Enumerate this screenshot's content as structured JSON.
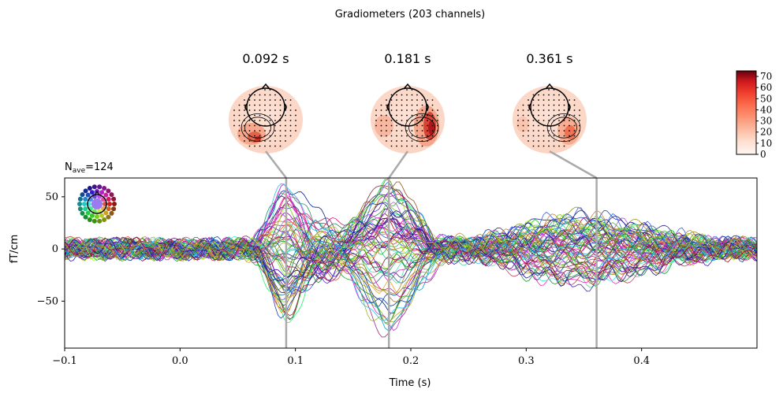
{
  "chart_data": {
    "type": "line",
    "title": "Gradiometers (203 channels)",
    "nave_label": "N",
    "nave_sub": "ave",
    "nave_value": "=124",
    "xlabel": "Time (s)",
    "ylabel": "fT/cm",
    "xlim": [
      -0.1,
      0.5
    ],
    "ylim": [
      -95,
      68
    ],
    "xticks": [
      -0.1,
      0.0,
      0.1,
      0.2,
      0.3,
      0.4
    ],
    "xtick_labels": [
      "−0.1",
      "0.0",
      "0.1",
      "0.2",
      "0.3",
      "0.4"
    ],
    "yticks": [
      50,
      0,
      -50
    ],
    "ytick_labels": [
      "50",
      "0",
      "−50"
    ],
    "n_channels": 203,
    "topomap_times": [
      0.092,
      0.181,
      0.361
    ],
    "topomap_labels": [
      "0.092 s",
      "0.181 s",
      "0.361 s"
    ],
    "colorbar": {
      "range": [
        0,
        75
      ],
      "ticks": [
        0,
        10,
        20,
        30,
        40,
        50,
        60,
        70
      ],
      "tick_labels": [
        "0",
        "10",
        "20",
        "30",
        "40",
        "50",
        "60",
        "70"
      ],
      "colormap": "Reds"
    },
    "series_summary": [
      {
        "name": "negative peak near 0.092 s",
        "x": [
          0.08,
          0.092,
          0.1
        ],
        "y": [
          -20,
          -80,
          -30
        ]
      },
      {
        "name": "positive peak near 0.092 s",
        "x": [
          0.085,
          0.092,
          0.1
        ],
        "y": [
          20,
          55,
          10
        ]
      },
      {
        "name": "negative peak near 0.181 s",
        "x": [
          0.16,
          0.181,
          0.2
        ],
        "y": [
          -40,
          -88,
          -50
        ]
      },
      {
        "name": "positive peak near 0.181 s",
        "x": [
          0.17,
          0.181,
          0.19
        ],
        "y": [
          40,
          60,
          30
        ]
      },
      {
        "name": "late activity near 0.361 s",
        "x": [
          0.33,
          0.355,
          0.38
        ],
        "y": [
          30,
          48,
          30
        ]
      }
    ],
    "colors": {
      "vline": "#aaaaaa",
      "frame": "#000000"
    }
  }
}
